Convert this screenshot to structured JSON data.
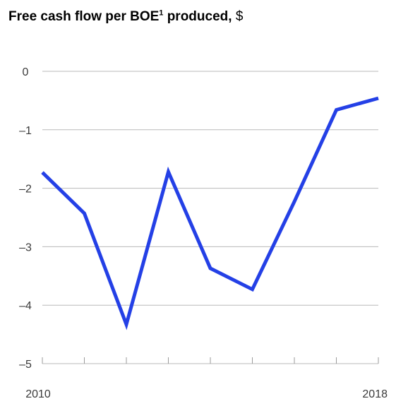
{
  "title": {
    "main": "Free cash flow per BOE",
    "superscript": "1",
    "suffix": " produced,",
    "unit": " $"
  },
  "colors": {
    "series_line": "#2440e6",
    "gridline": "#b9b9b9",
    "text": "#3a3a3a"
  },
  "chart_data": {
    "type": "line",
    "title": "Free cash flow per BOE1 produced, $",
    "xlabel": "",
    "ylabel": "",
    "x": [
      2010,
      2011,
      2012,
      2013,
      2014,
      2015,
      2016,
      2017,
      2018
    ],
    "x_tick_labels": [
      "2010",
      "",
      "",
      "",
      "",
      "",
      "",
      "",
      "2018"
    ],
    "ylim": [
      -5,
      0
    ],
    "y_ticks": [
      0,
      -1,
      -2,
      -3,
      -4,
      -5
    ],
    "y_tick_labels": [
      "0",
      "–1",
      "–2",
      "–3",
      "–4",
      "–5"
    ],
    "grid": true,
    "series": [
      {
        "values": [
          -1.73,
          -2.43,
          -4.33,
          -1.72,
          -3.37,
          -3.73,
          -2.23,
          -0.66,
          -0.46
        ]
      }
    ]
  }
}
